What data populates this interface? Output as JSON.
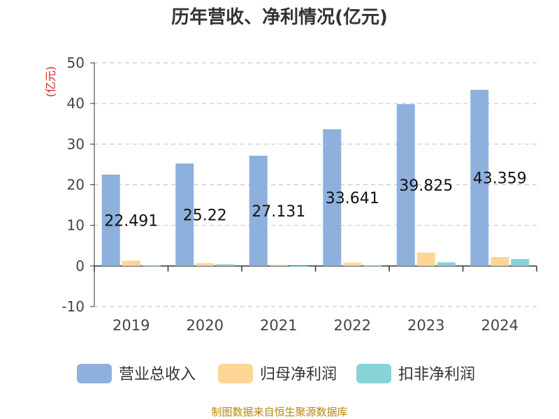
{
  "chart_data": {
    "type": "bar",
    "title": "历年营收、净利情况(亿元)",
    "ylabel": "(亿元)",
    "xlabel": "",
    "categories": [
      "2019",
      "2020",
      "2021",
      "2022",
      "2023",
      "2024"
    ],
    "ylim": [
      -10,
      50
    ],
    "yticks": [
      -10,
      0,
      10,
      20,
      30,
      40,
      50
    ],
    "grid": true,
    "legend_position": "bottom",
    "series": [
      {
        "name": "营业总收入",
        "color": "#8eb0dc",
        "values": [
          22.491,
          25.22,
          27.131,
          33.641,
          39.825,
          43.359
        ],
        "labels": [
          "22.491",
          "25.22",
          "27.131",
          "33.641",
          "39.825",
          "43.359"
        ]
      },
      {
        "name": "归母净利润",
        "color": "#fdd696",
        "values": [
          1.3,
          0.7,
          0.3,
          0.8,
          3.3,
          2.2
        ]
      },
      {
        "name": "扣非净利润",
        "color": "#86d4d8",
        "values": [
          0.1,
          0.4,
          -0.2,
          0.1,
          0.9,
          1.7
        ]
      }
    ]
  },
  "source": "制图数据来自恒生聚源数据库"
}
